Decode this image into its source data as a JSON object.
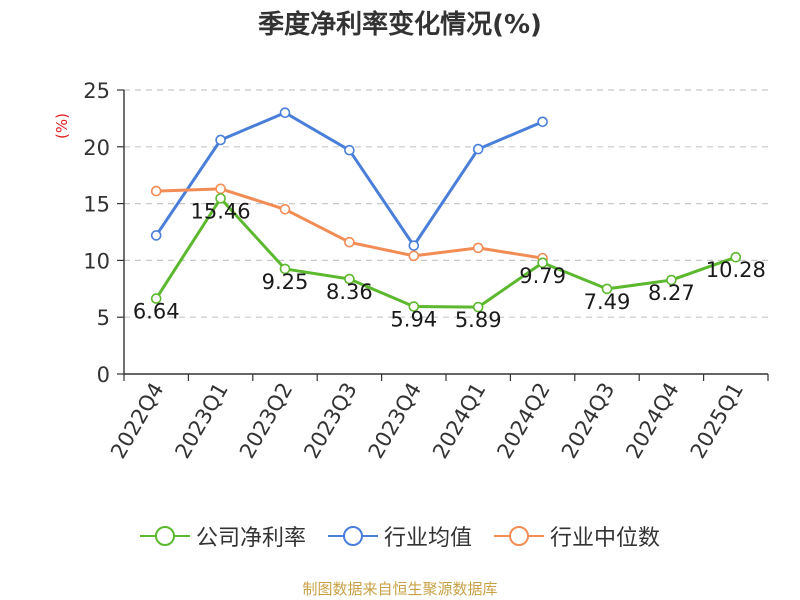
{
  "chart_data": {
    "type": "line",
    "title": "季度净利率变化情况(%)",
    "ylabel": "(%)",
    "xlabel": "",
    "ylim": [
      0,
      25
    ],
    "yticks": [
      0,
      5,
      10,
      15,
      20,
      25
    ],
    "grid": true,
    "legend_position": "bottom",
    "categories": [
      "2022Q4",
      "2023Q1",
      "2023Q2",
      "2023Q3",
      "2023Q4",
      "2024Q1",
      "2024Q2",
      "2024Q3",
      "2024Q4",
      "2025Q1"
    ],
    "series": [
      {
        "name": "公司净利率",
        "color": "#5CB82E",
        "values": [
          6.64,
          15.46,
          9.25,
          8.36,
          5.94,
          5.89,
          9.79,
          7.49,
          8.27,
          10.28
        ],
        "value_labels": [
          "6.64",
          "15.46",
          "9.25",
          "8.36",
          "5.94",
          "5.89",
          "9.79",
          "7.49",
          "8.27",
          "10.28"
        ]
      },
      {
        "name": "行业均值",
        "color": "#4A7FD9",
        "values": [
          12.2,
          20.6,
          23.0,
          19.7,
          11.3,
          19.8,
          22.2,
          null,
          null,
          null
        ]
      },
      {
        "name": "行业中位数",
        "color": "#F28C55",
        "values": [
          16.1,
          16.3,
          14.5,
          11.6,
          10.4,
          11.1,
          10.2,
          null,
          null,
          null
        ]
      }
    ],
    "source": "制图数据来自恒生聚源数据库"
  },
  "colors": {
    "axis": "#333333",
    "grid": "#C8C8C8",
    "ylabel": "#E02020",
    "source": "#C8A146"
  }
}
